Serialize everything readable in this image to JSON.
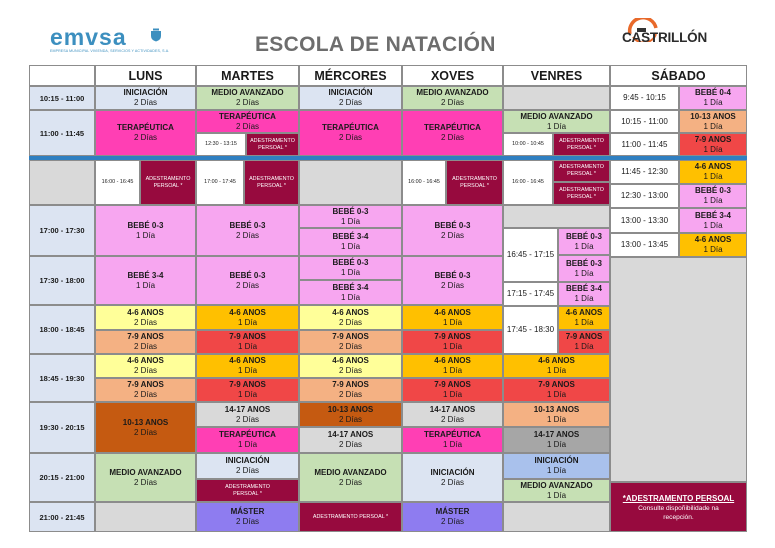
{
  "header": {
    "title": "ESCOLA DE NATACIÓN",
    "left_logo": "emvsa",
    "left_logo_sub": "EMPRESA MUNICIPAL VIVIENDA, SERVICIOS Y ACTIVIDADES, S.A.",
    "right_logo": "CASTRILLÓN"
  },
  "days": [
    "LUNS",
    "MARTES",
    "MÉRCORES",
    "XOVES",
    "VENRES",
    "SÁBADO"
  ],
  "colors": {
    "lightblue": "#dce4f2",
    "green": "#c6e0b4",
    "pink": "#ff3fb4",
    "lightpink": "#f7a6f0",
    "maroon": "#970a3e",
    "yellow": "#ffff99",
    "orange": "#ffc000",
    "salmon": "#f4b183",
    "red": "#f04747",
    "rust": "#c55a11",
    "gray": "#d9d9d9",
    "midgray": "#a6a6a6",
    "purple": "#8e7cf0",
    "blue": "#a9c1ec"
  },
  "times": {
    "r1": "10:15 - 11:00",
    "r2": "11:00 - 11:45",
    "r4": "17:00 - 17:30",
    "r5": "17:30 - 18:00",
    "r6": "18:00 - 18:45",
    "r7": "18:45 - 19:30",
    "r8": "19:30 - 20:15",
    "r9": "20:15 - 21:00",
    "r10": "21:00 - 21:45"
  },
  "subtimes": {
    "s1": "12:30 - 13:15",
    "s2": "10:00 - 10:45",
    "s3": "16:00 - 16:45",
    "s4": "17:00 - 17:45",
    "s5": "16:00 - 16:45",
    "s6": "16:00 - 16:45",
    "s7": "16:45 - 17:15",
    "s8": "17:15 - 17:45",
    "s9": "17:45 - 18:30"
  },
  "saturday_times": {
    "a": "9:45 - 10:15",
    "b": "10:15 - 11:00",
    "c": "11:00 - 11:45",
    "d": "11:45 - 12:30",
    "e": "12:30 - 13:00",
    "f": "13:00 - 13:30",
    "g": "13:00 - 13:45"
  },
  "labels": {
    "iniciacion": "INICIACIÓN",
    "medio": "MEDIO AVANZADO",
    "terapeutica": "TERAPÉUTICA",
    "adest": "ADESTRAMENTO",
    "persoal": "PERSOAL *",
    "adest_full": "ADESTRAMENTO PERSOAL *",
    "bebe03": "BEBÉ 0-3",
    "bebe34": "BEBÉ 3-4",
    "bebe04": "BEBÉ 0-4",
    "a46": "4-6 ANOS",
    "a79": "7-9 ANOS",
    "a1013": "10-13 ANOS",
    "a1417": "14-17 ANOS",
    "master": "MÁSTER",
    "dias2": "2 Días",
    "dia1": "1 Día"
  },
  "note": {
    "title": "*ADESTRAMENTO PERSOAL",
    "text": "Consulte dispoñibilidade na recepción."
  }
}
